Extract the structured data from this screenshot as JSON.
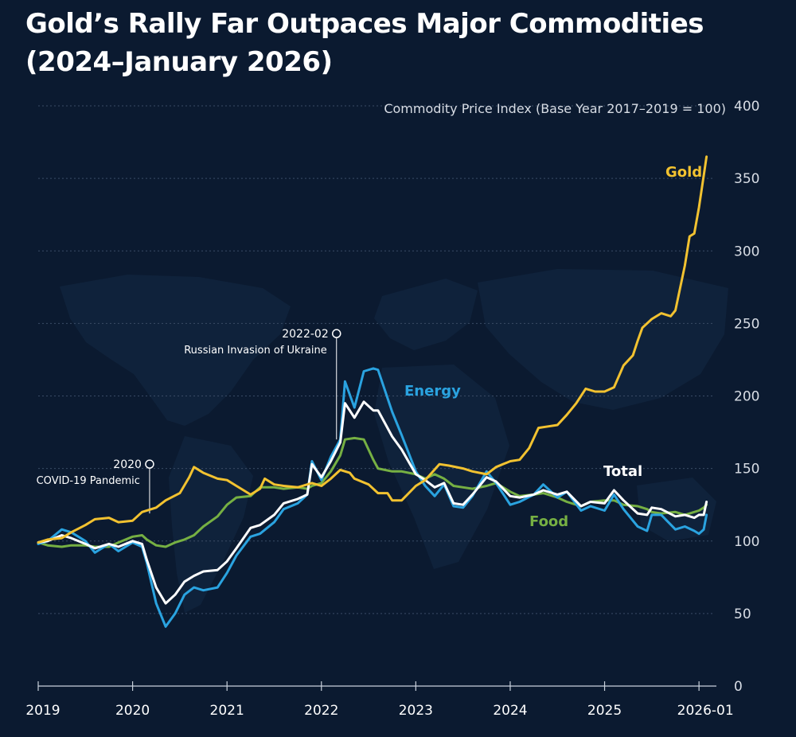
{
  "chart_data": {
    "type": "line",
    "title_line1": "Gold’s Rally Far Outpaces Major Commodities",
    "title_line2": "(2024–January 2026)",
    "ylabel": "Commodity Price Index (Base Year 2017–2019 = 100)",
    "ylim": [
      0,
      400
    ],
    "yticks": [
      0,
      50,
      100,
      150,
      200,
      250,
      300,
      350,
      400
    ],
    "xlim": [
      2019.0,
      2026.1
    ],
    "xticks": [
      {
        "value": 2019.0,
        "label": "2019"
      },
      {
        "value": 2020.0,
        "label": "2020"
      },
      {
        "value": 2021.0,
        "label": "2021"
      },
      {
        "value": 2022.0,
        "label": "2022"
      },
      {
        "value": 2023.0,
        "label": "2023"
      },
      {
        "value": 2024.0,
        "label": "2024"
      },
      {
        "value": 2025.0,
        "label": "2025"
      },
      {
        "value": 2026.0,
        "label": "2026-01"
      }
    ],
    "grid": "horizontal dotted",
    "series": [
      {
        "name": "Gold",
        "color": "#f2c230",
        "label_at": [
          2024.0,
          352
        ],
        "points": [
          [
            2019.0,
            99
          ],
          [
            2019.1,
            101
          ],
          [
            2019.25,
            102
          ],
          [
            2019.35,
            106
          ],
          [
            2019.5,
            111
          ],
          [
            2019.6,
            115
          ],
          [
            2019.75,
            116
          ],
          [
            2019.85,
            113
          ],
          [
            2020.0,
            114
          ],
          [
            2020.1,
            120
          ],
          [
            2020.25,
            123
          ],
          [
            2020.35,
            128
          ],
          [
            2020.5,
            133
          ],
          [
            2020.6,
            144
          ],
          [
            2020.65,
            151
          ],
          [
            2020.75,
            147
          ],
          [
            2020.9,
            143
          ],
          [
            2021.0,
            142
          ],
          [
            2021.1,
            138
          ],
          [
            2021.25,
            132
          ],
          [
            2021.35,
            136
          ],
          [
            2021.4,
            143
          ],
          [
            2021.5,
            139
          ],
          [
            2021.6,
            138
          ],
          [
            2021.75,
            137
          ],
          [
            2021.9,
            140
          ],
          [
            2022.0,
            138
          ],
          [
            2022.1,
            143
          ],
          [
            2022.2,
            149
          ],
          [
            2022.3,
            147
          ],
          [
            2022.35,
            143
          ],
          [
            2022.5,
            139
          ],
          [
            2022.6,
            133
          ],
          [
            2022.7,
            133
          ],
          [
            2022.75,
            128
          ],
          [
            2022.85,
            128
          ],
          [
            2023.0,
            138
          ],
          [
            2023.1,
            142
          ],
          [
            2023.25,
            153
          ],
          [
            2023.35,
            152
          ],
          [
            2023.5,
            150
          ],
          [
            2023.6,
            148
          ],
          [
            2023.75,
            146
          ],
          [
            2023.85,
            151
          ],
          [
            2024.0,
            155
          ],
          [
            2024.1,
            156
          ],
          [
            2024.2,
            164
          ],
          [
            2024.3,
            178
          ],
          [
            2024.4,
            179
          ],
          [
            2024.5,
            180
          ],
          [
            2024.6,
            187
          ],
          [
            2024.7,
            195
          ],
          [
            2024.8,
            205
          ],
          [
            2024.9,
            203
          ],
          [
            2025.0,
            203
          ],
          [
            2025.1,
            206
          ],
          [
            2025.2,
            221
          ],
          [
            2025.3,
            228
          ],
          [
            2025.35,
            238
          ],
          [
            2025.4,
            247
          ],
          [
            2025.5,
            253
          ],
          [
            2025.6,
            257
          ],
          [
            2025.7,
            255
          ],
          [
            2025.75,
            259
          ],
          [
            2025.85,
            290
          ],
          [
            2025.9,
            310
          ],
          [
            2025.95,
            312
          ],
          [
            2026.0,
            330
          ],
          [
            2026.05,
            352
          ],
          [
            2026.08,
            365
          ]
        ]
      },
      {
        "name": "Energy",
        "color": "#2aa3e0",
        "label_at": [
          2022.65,
          206
        ],
        "points": [
          [
            2019.0,
            98
          ],
          [
            2019.1,
            100
          ],
          [
            2019.25,
            108
          ],
          [
            2019.35,
            106
          ],
          [
            2019.5,
            100
          ],
          [
            2019.6,
            92
          ],
          [
            2019.75,
            98
          ],
          [
            2019.85,
            93
          ],
          [
            2020.0,
            99
          ],
          [
            2020.1,
            96
          ],
          [
            2020.15,
            85
          ],
          [
            2020.25,
            57
          ],
          [
            2020.35,
            41
          ],
          [
            2020.45,
            50
          ],
          [
            2020.55,
            63
          ],
          [
            2020.65,
            68
          ],
          [
            2020.75,
            66
          ],
          [
            2020.9,
            68
          ],
          [
            2021.0,
            78
          ],
          [
            2021.1,
            90
          ],
          [
            2021.25,
            103
          ],
          [
            2021.35,
            105
          ],
          [
            2021.5,
            113
          ],
          [
            2021.6,
            122
          ],
          [
            2021.75,
            126
          ],
          [
            2021.85,
            132
          ],
          [
            2021.9,
            155
          ],
          [
            2022.0,
            142
          ],
          [
            2022.1,
            158
          ],
          [
            2022.2,
            170
          ],
          [
            2022.25,
            210
          ],
          [
            2022.35,
            192
          ],
          [
            2022.45,
            217
          ],
          [
            2022.55,
            219
          ],
          [
            2022.6,
            218
          ],
          [
            2022.75,
            189
          ],
          [
            2022.85,
            173
          ],
          [
            2023.0,
            148
          ],
          [
            2023.1,
            138
          ],
          [
            2023.2,
            131
          ],
          [
            2023.3,
            139
          ],
          [
            2023.4,
            124
          ],
          [
            2023.5,
            123
          ],
          [
            2023.6,
            131
          ],
          [
            2023.75,
            148
          ],
          [
            2023.85,
            140
          ],
          [
            2024.0,
            125
          ],
          [
            2024.1,
            127
          ],
          [
            2024.25,
            132
          ],
          [
            2024.35,
            139
          ],
          [
            2024.5,
            130
          ],
          [
            2024.6,
            134
          ],
          [
            2024.75,
            121
          ],
          [
            2024.85,
            124
          ],
          [
            2025.0,
            121
          ],
          [
            2025.1,
            132
          ],
          [
            2025.2,
            122
          ],
          [
            2025.35,
            110
          ],
          [
            2025.45,
            107
          ],
          [
            2025.5,
            118
          ],
          [
            2025.6,
            118
          ],
          [
            2025.75,
            108
          ],
          [
            2025.85,
            110
          ],
          [
            2025.95,
            107
          ],
          [
            2026.0,
            105
          ],
          [
            2026.05,
            108
          ],
          [
            2026.08,
            118
          ]
        ]
      },
      {
        "name": "Total",
        "color": "#ffffff",
        "label_at": [
          2025.8,
          148
        ],
        "points": [
          [
            2019.0,
            99
          ],
          [
            2019.1,
            100
          ],
          [
            2019.25,
            104
          ],
          [
            2019.35,
            102
          ],
          [
            2019.5,
            98
          ],
          [
            2019.6,
            95
          ],
          [
            2019.75,
            98
          ],
          [
            2019.85,
            96
          ],
          [
            2020.0,
            100
          ],
          [
            2020.1,
            98
          ],
          [
            2020.15,
            87
          ],
          [
            2020.25,
            68
          ],
          [
            2020.35,
            57
          ],
          [
            2020.45,
            63
          ],
          [
            2020.55,
            72
          ],
          [
            2020.65,
            76
          ],
          [
            2020.75,
            79
          ],
          [
            2020.9,
            80
          ],
          [
            2021.0,
            86
          ],
          [
            2021.1,
            95
          ],
          [
            2021.25,
            109
          ],
          [
            2021.35,
            111
          ],
          [
            2021.5,
            118
          ],
          [
            2021.6,
            126
          ],
          [
            2021.75,
            129
          ],
          [
            2021.85,
            132
          ],
          [
            2021.9,
            153
          ],
          [
            2022.0,
            144
          ],
          [
            2022.1,
            155
          ],
          [
            2022.2,
            168
          ],
          [
            2022.25,
            195
          ],
          [
            2022.35,
            185
          ],
          [
            2022.45,
            196
          ],
          [
            2022.55,
            190
          ],
          [
            2022.6,
            190
          ],
          [
            2022.75,
            172
          ],
          [
            2022.85,
            163
          ],
          [
            2023.0,
            146
          ],
          [
            2023.1,
            142
          ],
          [
            2023.2,
            137
          ],
          [
            2023.3,
            140
          ],
          [
            2023.4,
            126
          ],
          [
            2023.5,
            125
          ],
          [
            2023.6,
            132
          ],
          [
            2023.75,
            144
          ],
          [
            2023.85,
            141
          ],
          [
            2024.0,
            131
          ],
          [
            2024.1,
            130
          ],
          [
            2024.25,
            132
          ],
          [
            2024.35,
            135
          ],
          [
            2024.5,
            132
          ],
          [
            2024.6,
            134
          ],
          [
            2024.75,
            124
          ],
          [
            2024.85,
            127
          ],
          [
            2025.0,
            126
          ],
          [
            2025.1,
            135
          ],
          [
            2025.2,
            128
          ],
          [
            2025.35,
            119
          ],
          [
            2025.45,
            118
          ],
          [
            2025.5,
            123
          ],
          [
            2025.6,
            122
          ],
          [
            2025.75,
            117
          ],
          [
            2025.85,
            118
          ],
          [
            2025.95,
            116
          ],
          [
            2026.0,
            118
          ],
          [
            2026.05,
            118
          ],
          [
            2026.08,
            127
          ]
        ]
      },
      {
        "name": "Food",
        "color": "#76b043",
        "label_at": [
          2024.05,
          114
        ],
        "points": [
          [
            2019.0,
            99
          ],
          [
            2019.1,
            97
          ],
          [
            2019.25,
            96
          ],
          [
            2019.35,
            97
          ],
          [
            2019.5,
            97
          ],
          [
            2019.6,
            96
          ],
          [
            2019.75,
            96
          ],
          [
            2019.85,
            99
          ],
          [
            2020.0,
            103
          ],
          [
            2020.1,
            104
          ],
          [
            2020.15,
            101
          ],
          [
            2020.25,
            97
          ],
          [
            2020.35,
            96
          ],
          [
            2020.45,
            99
          ],
          [
            2020.55,
            101
          ],
          [
            2020.65,
            104
          ],
          [
            2020.75,
            110
          ],
          [
            2020.9,
            117
          ],
          [
            2021.0,
            125
          ],
          [
            2021.1,
            130
          ],
          [
            2021.25,
            131
          ],
          [
            2021.35,
            137
          ],
          [
            2021.5,
            137
          ],
          [
            2021.6,
            136
          ],
          [
            2021.75,
            137
          ],
          [
            2021.85,
            136
          ],
          [
            2021.9,
            138
          ],
          [
            2022.0,
            140
          ],
          [
            2022.1,
            148
          ],
          [
            2022.2,
            159
          ],
          [
            2022.25,
            170
          ],
          [
            2022.35,
            171
          ],
          [
            2022.45,
            170
          ],
          [
            2022.55,
            156
          ],
          [
            2022.6,
            150
          ],
          [
            2022.75,
            148
          ],
          [
            2022.85,
            148
          ],
          [
            2023.0,
            146
          ],
          [
            2023.1,
            143
          ],
          [
            2023.2,
            146
          ],
          [
            2023.3,
            143
          ],
          [
            2023.4,
            138
          ],
          [
            2023.5,
            137
          ],
          [
            2023.6,
            136
          ],
          [
            2023.75,
            138
          ],
          [
            2023.85,
            140
          ],
          [
            2024.0,
            134
          ],
          [
            2024.1,
            131
          ],
          [
            2024.25,
            132
          ],
          [
            2024.35,
            133
          ],
          [
            2024.5,
            130
          ],
          [
            2024.6,
            127
          ],
          [
            2024.75,
            124
          ],
          [
            2024.85,
            127
          ],
          [
            2025.0,
            128
          ],
          [
            2025.1,
            128
          ],
          [
            2025.2,
            125
          ],
          [
            2025.35,
            124
          ],
          [
            2025.45,
            122
          ],
          [
            2025.5,
            120
          ],
          [
            2025.6,
            119
          ],
          [
            2025.75,
            120
          ],
          [
            2025.85,
            118
          ],
          [
            2025.95,
            120
          ],
          [
            2026.0,
            121
          ],
          [
            2026.05,
            123
          ],
          [
            2026.08,
            125
          ]
        ]
      }
    ],
    "annotations": [
      {
        "date": "2020",
        "text": "COVID-19 Pandemic",
        "x": 2020.18,
        "y": 153,
        "stem_to": 119
      },
      {
        "date": "2022-02",
        "text": "Russian Invasion of Ukraine",
        "x": 2022.16,
        "y": 243,
        "stem_to": 170
      }
    ]
  }
}
